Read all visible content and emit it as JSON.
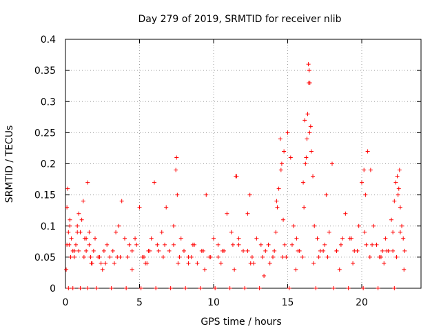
{
  "chart_data": {
    "type": "scatter",
    "title": "Day 279 of 2019, SRMTID for receiver nlib",
    "xlabel": "GPS time / hours",
    "ylabel": "SRMTID / TECUs",
    "xlim": [
      0,
      24
    ],
    "ylim": [
      0,
      0.4
    ],
    "xticks": [
      0,
      5,
      10,
      15,
      20
    ],
    "xtick_labels": [
      "0",
      "5",
      "10",
      "15",
      "20"
    ],
    "yticks": [
      0,
      0.05,
      0.1,
      0.15,
      0.2,
      0.25,
      0.3,
      0.35,
      0.4
    ],
    "ytick_labels": [
      "0",
      "0.05",
      "0.1",
      "0.15",
      "0.2",
      "0.25",
      "0.3",
      "0.35",
      "0.4"
    ],
    "grid": true,
    "marker": "+",
    "color": "#ff0000",
    "series": [
      {
        "name": "SRMTID",
        "x": [
          0.1,
          0.15,
          0.2,
          0.25,
          0.3,
          0.4,
          0.5,
          0.6,
          0.7,
          0.8,
          0.9,
          1.0,
          1.1,
          1.2,
          1.3,
          1.4,
          1.5,
          1.6,
          1.7,
          1.8,
          1.9,
          2.0,
          2.2,
          2.4,
          2.6,
          2.8,
          3.0,
          3.2,
          3.4,
          3.6,
          3.8,
          4.0,
          4.2,
          4.5,
          4.8,
          5.0,
          5.2,
          5.4,
          5.6,
          5.8,
          6.0,
          6.2,
          6.5,
          6.8,
          7.0,
          7.3,
          7.5,
          7.8,
          8.0,
          8.3,
          8.6,
          8.9,
          9.2,
          9.5,
          9.8,
          10.0,
          10.3,
          10.6,
          10.9,
          11.2,
          11.5,
          11.7,
          12.0,
          12.3,
          12.6,
          12.9,
          13.2,
          13.5,
          13.8,
          14.0,
          14.2,
          14.3,
          14.4,
          14.5,
          14.6,
          14.7,
          14.8,
          15.0,
          15.2,
          15.4,
          15.6,
          15.8,
          16.0,
          16.1,
          16.2,
          16.3,
          16.35,
          16.4,
          16.45,
          16.5,
          16.55,
          16.6,
          16.7,
          16.8,
          17.0,
          17.2,
          17.5,
          17.8,
          18.0,
          18.3,
          18.6,
          18.9,
          19.2,
          19.5,
          19.8,
          20.0,
          20.2,
          20.4,
          20.6,
          20.8,
          21.0,
          21.2,
          21.4,
          21.6,
          21.8,
          22.0,
          22.1,
          22.2,
          22.3,
          22.4,
          22.5,
          22.6,
          22.7,
          22.8,
          22.9,
          0.2,
          0.5,
          1.0,
          1.5,
          2.1,
          3.1,
          4.1,
          5.1,
          6.1,
          7.1,
          8.1,
          9.1,
          10.1,
          11.1,
          12.1,
          13.1,
          15.1,
          16.9,
          18.1,
          19.1,
          20.1,
          21.1,
          22.2,
          0.1,
          0.35,
          0.9,
          1.6,
          2.3,
          3.3,
          4.3,
          5.3,
          6.3,
          7.3,
          8.3,
          9.3,
          10.3,
          11.3,
          12.3,
          13.3,
          14.1,
          15.3,
          17.1,
          18.3,
          19.3,
          20.3,
          21.3,
          22.1,
          0.3,
          0.8,
          1.4,
          2.7,
          3.7,
          4.7,
          5.7,
          6.7,
          7.7,
          8.7,
          9.7,
          10.7,
          11.7,
          12.7,
          13.7,
          14.9,
          15.7,
          16.25,
          17.4,
          18.7,
          19.7,
          20.7,
          21.7,
          22.6,
          7.45,
          7.55,
          11.55,
          12.45,
          14.25,
          14.55,
          14.75,
          16.05,
          16.15,
          16.42,
          16.48,
          17.6,
          20.15,
          20.25,
          22.45,
          22.55,
          0.05,
          0.6,
          1.25,
          1.75,
          2.5,
          3.5,
          4.5,
          5.5,
          6.6,
          7.6,
          8.5,
          9.4,
          10.5,
          11.4,
          12.5,
          13.4,
          14.65,
          15.55,
          16.75,
          17.7,
          18.5,
          19.4,
          20.55,
          21.5,
          22.35,
          22.85
        ],
        "y": [
          0.13,
          0.16,
          0.09,
          0.07,
          0.11,
          0.08,
          0.06,
          0.05,
          0.07,
          0.1,
          0.12,
          0.09,
          0.11,
          0.14,
          0.08,
          0.06,
          0.17,
          0.07,
          0.05,
          0.04,
          0.06,
          0.08,
          0.05,
          0.04,
          0.06,
          0.07,
          0.05,
          0.06,
          0.09,
          0.1,
          0.14,
          0.08,
          0.05,
          0.06,
          0.07,
          0.13,
          0.05,
          0.04,
          0.06,
          0.08,
          0.17,
          0.07,
          0.09,
          0.13,
          0.06,
          0.1,
          0.21,
          0.08,
          0.06,
          0.05,
          0.07,
          0.04,
          0.06,
          0.15,
          0.05,
          0.08,
          0.07,
          0.06,
          0.12,
          0.09,
          0.18,
          0.07,
          0.06,
          0.12,
          0.05,
          0.08,
          0.07,
          0.06,
          0.04,
          0.05,
          0.09,
          0.13,
          0.16,
          0.24,
          0.2,
          0.11,
          0.07,
          0.25,
          0.21,
          0.1,
          0.08,
          0.06,
          0.05,
          0.13,
          0.2,
          0.24,
          0.28,
          0.36,
          0.35,
          0.33,
          0.26,
          0.22,
          0.18,
          0.1,
          0.08,
          0.06,
          0.07,
          0.09,
          0.2,
          0.06,
          0.07,
          0.12,
          0.08,
          0.06,
          0.1,
          0.17,
          0.09,
          0.22,
          0.19,
          0.1,
          0.07,
          0.05,
          0.06,
          0.08,
          0.06,
          0.11,
          0.09,
          0.14,
          0.17,
          0.18,
          0.16,
          0.13,
          0.1,
          0.08,
          0.06,
          0.0,
          0.0,
          0.0,
          0.0,
          0.0,
          0.0,
          0.0,
          0.0,
          0.0,
          0.0,
          0.0,
          0.0,
          0.0,
          0.0,
          0.0,
          0.0,
          0.0,
          0.0,
          0.0,
          0.0,
          0.0,
          0.0,
          0.0,
          0.07,
          0.05,
          0.06,
          0.09,
          0.05,
          0.04,
          0.07,
          0.05,
          0.06,
          0.07,
          0.04,
          0.06,
          0.05,
          0.07,
          0.06,
          0.05,
          0.06,
          0.07,
          0.05,
          0.06,
          0.08,
          0.07,
          0.05,
          0.06,
          0.1,
          0.09,
          0.08,
          0.04,
          0.05,
          0.08,
          0.06,
          0.07,
          0.05,
          0.07,
          0.05,
          0.06,
          0.08,
          0.04,
          0.07,
          0.05,
          0.06,
          0.21,
          0.06,
          0.08,
          0.06,
          0.07,
          0.06,
          0.09,
          0.19,
          0.15,
          0.18,
          0.15,
          0.14,
          0.19,
          0.22,
          0.17,
          0.27,
          0.33,
          0.25,
          0.15,
          0.19,
          0.15,
          0.15,
          0.19,
          0.03,
          0.06,
          0.05,
          0.04,
          0.03,
          0.05,
          0.03,
          0.04,
          0.05,
          0.04,
          0.05,
          0.03,
          0.04,
          0.03,
          0.04,
          0.02,
          0.05,
          0.03,
          0.04,
          0.05,
          0.03,
          0.04,
          0.05,
          0.04,
          0.05,
          0.03
        ]
      }
    ]
  }
}
